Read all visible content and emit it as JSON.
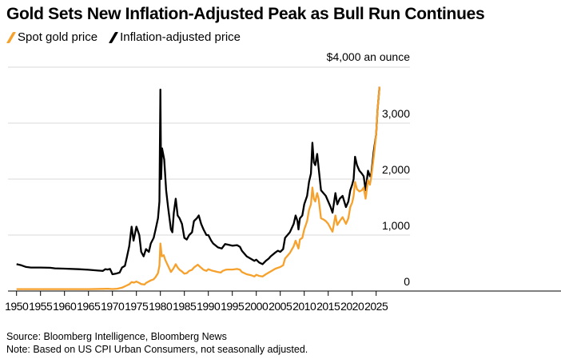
{
  "chart_data": {
    "type": "line",
    "title": "Gold Sets New Inflation-Adjusted Peak as Bull Run Continues",
    "unit_label": "$4,000 an ounce",
    "xlabel": "",
    "ylabel": "",
    "xlim": [
      1948,
      2035
    ],
    "ylim": [
      0,
      4000
    ],
    "grid": true,
    "legend_position": "top-left",
    "x_ticks": [
      1950,
      1955,
      1960,
      1965,
      1970,
      1975,
      1980,
      1985,
      1990,
      1995,
      2000,
      2005,
      2010,
      2015,
      2020,
      2025
    ],
    "y_ticks": [
      {
        "value": 0,
        "label": "0"
      },
      {
        "value": 1000,
        "label": "1,000"
      },
      {
        "value": 2000,
        "label": "2,000"
      },
      {
        "value": 3000,
        "label": "3,000"
      },
      {
        "value": 4000,
        "label": "$4,000 an ounce"
      }
    ],
    "series": [
      {
        "name": "Inflation-adjusted price",
        "color": "#000000",
        "points": [
          [
            1950,
            480
          ],
          [
            1951,
            460
          ],
          [
            1952,
            430
          ],
          [
            1953,
            420
          ],
          [
            1955,
            420
          ],
          [
            1957,
            415
          ],
          [
            1958,
            405
          ],
          [
            1960,
            400
          ],
          [
            1963,
            390
          ],
          [
            1965,
            380
          ],
          [
            1967,
            365
          ],
          [
            1968,
            360
          ],
          [
            1968.5,
            390
          ],
          [
            1969,
            385
          ],
          [
            1969.5,
            395
          ],
          [
            1970,
            300
          ],
          [
            1970.7,
            310
          ],
          [
            1971.5,
            330
          ],
          [
            1972,
            420
          ],
          [
            1972.6,
            450
          ],
          [
            1973,
            600
          ],
          [
            1973.5,
            800
          ],
          [
            1974,
            1150
          ],
          [
            1974.4,
            900
          ],
          [
            1975,
            1150
          ],
          [
            1975.6,
            1000
          ],
          [
            1976,
            700
          ],
          [
            1976.5,
            620
          ],
          [
            1977,
            750
          ],
          [
            1977.6,
            700
          ],
          [
            1978,
            850
          ],
          [
            1978.6,
            950
          ],
          [
            1979,
            1100
          ],
          [
            1979.5,
            1300
          ],
          [
            1979.8,
            1600
          ],
          [
            1980.0,
            3600
          ],
          [
            1980.15,
            2000
          ],
          [
            1980.35,
            2550
          ],
          [
            1980.8,
            2350
          ],
          [
            1981.2,
            1800
          ],
          [
            1981.6,
            1500
          ],
          [
            1982.2,
            1100
          ],
          [
            1982.5,
            1050
          ],
          [
            1982.8,
            1400
          ],
          [
            1983.2,
            1650
          ],
          [
            1983.6,
            1350
          ],
          [
            1984,
            1300
          ],
          [
            1984.5,
            1200
          ],
          [
            1985,
            950
          ],
          [
            1985.5,
            920
          ],
          [
            1986,
            1000
          ],
          [
            1986.6,
            1050
          ],
          [
            1987,
            1250
          ],
          [
            1987.6,
            1300
          ],
          [
            1988,
            1350
          ],
          [
            1988.5,
            1200
          ],
          [
            1989,
            1100
          ],
          [
            1989.6,
            1000
          ],
          [
            1990,
            1000
          ],
          [
            1990.6,
            900
          ],
          [
            1991,
            850
          ],
          [
            1992,
            780
          ],
          [
            1992.8,
            760
          ],
          [
            1993.5,
            840
          ],
          [
            1994,
            830
          ],
          [
            1995,
            810
          ],
          [
            1996,
            820
          ],
          [
            1996.6,
            790
          ],
          [
            1997,
            720
          ],
          [
            1998,
            620
          ],
          [
            1999,
            570
          ],
          [
            1999.6,
            540
          ],
          [
            2000,
            560
          ],
          [
            2000.6,
            510
          ],
          [
            2001.3,
            480
          ],
          [
            2002,
            540
          ],
          [
            2002.6,
            580
          ],
          [
            2003,
            620
          ],
          [
            2004,
            690
          ],
          [
            2004.5,
            720
          ],
          [
            2005,
            700
          ],
          [
            2005.6,
            750
          ],
          [
            2006,
            950
          ],
          [
            2006.5,
            1000
          ],
          [
            2007,
            1050
          ],
          [
            2007.8,
            1200
          ],
          [
            2008.2,
            1350
          ],
          [
            2008.6,
            1250
          ],
          [
            2008.8,
            1100
          ],
          [
            2009.1,
            1300
          ],
          [
            2009.6,
            1350
          ],
          [
            2010,
            1550
          ],
          [
            2010.6,
            1700
          ],
          [
            2011,
            1950
          ],
          [
            2011.4,
            2100
          ],
          [
            2011.7,
            2650
          ],
          [
            2012,
            2300
          ],
          [
            2012.3,
            2250
          ],
          [
            2012.7,
            2450
          ],
          [
            2013,
            2200
          ],
          [
            2013.5,
            1800
          ],
          [
            2014,
            1750
          ],
          [
            2014.5,
            1700
          ],
          [
            2015,
            1600
          ],
          [
            2015.5,
            1500
          ],
          [
            2015.9,
            1400
          ],
          [
            2016.5,
            1750
          ],
          [
            2016.9,
            1550
          ],
          [
            2017.4,
            1650
          ],
          [
            2018,
            1700
          ],
          [
            2018.7,
            1500
          ],
          [
            2019.2,
            1600
          ],
          [
            2019.6,
            1800
          ],
          [
            2020,
            1900
          ],
          [
            2020.3,
            2000
          ],
          [
            2020.6,
            2400
          ],
          [
            2021,
            2250
          ],
          [
            2021.5,
            2150
          ],
          [
            2022,
            2100
          ],
          [
            2022.4,
            2050
          ],
          [
            2022.8,
            1800
          ],
          [
            2023.3,
            2150
          ],
          [
            2023.7,
            2050
          ],
          [
            2024,
            2100
          ],
          [
            2024.5,
            2500
          ],
          [
            2025,
            2800
          ],
          [
            2025.3,
            3250
          ],
          [
            2025.7,
            3650
          ]
        ]
      },
      {
        "name": "Spot gold price",
        "color": "#f7a12d",
        "points": [
          [
            1950,
            35
          ],
          [
            1955,
            35
          ],
          [
            1960,
            35
          ],
          [
            1965,
            35
          ],
          [
            1968,
            38
          ],
          [
            1969,
            42
          ],
          [
            1970,
            36
          ],
          [
            1971,
            41
          ],
          [
            1972,
            60
          ],
          [
            1973,
            100
          ],
          [
            1973.5,
            120
          ],
          [
            1974,
            160
          ],
          [
            1974.5,
            150
          ],
          [
            1975,
            170
          ],
          [
            1975.6,
            145
          ],
          [
            1976,
            125
          ],
          [
            1976.7,
            115
          ],
          [
            1977,
            145
          ],
          [
            1978,
            190
          ],
          [
            1978.6,
            210
          ],
          [
            1979,
            250
          ],
          [
            1979.5,
            320
          ],
          [
            1979.8,
            450
          ],
          [
            1980.0,
            850
          ],
          [
            1980.3,
            620
          ],
          [
            1980.7,
            640
          ],
          [
            1981,
            560
          ],
          [
            1981.6,
            450
          ],
          [
            1982.2,
            340
          ],
          [
            1982.7,
            400
          ],
          [
            1983.2,
            480
          ],
          [
            1983.6,
            420
          ],
          [
            1984,
            380
          ],
          [
            1984.5,
            350
          ],
          [
            1985,
            310
          ],
          [
            1985.5,
            320
          ],
          [
            1986,
            360
          ],
          [
            1986.6,
            380
          ],
          [
            1987,
            420
          ],
          [
            1987.8,
            470
          ],
          [
            1988.3,
            430
          ],
          [
            1989,
            380
          ],
          [
            1989.6,
            360
          ],
          [
            1990,
            390
          ],
          [
            1990.6,
            370
          ],
          [
            1991,
            360
          ],
          [
            1992,
            340
          ],
          [
            1992.6,
            330
          ],
          [
            1993,
            360
          ],
          [
            1993.6,
            380
          ],
          [
            1994,
            385
          ],
          [
            1995,
            385
          ],
          [
            1996,
            395
          ],
          [
            1996.6,
            380
          ],
          [
            1997,
            340
          ],
          [
            1998,
            300
          ],
          [
            1999,
            280
          ],
          [
            1999.6,
            260
          ],
          [
            2000,
            290
          ],
          [
            2000.6,
            270
          ],
          [
            2001.3,
            260
          ],
          [
            2002,
            300
          ],
          [
            2003,
            350
          ],
          [
            2004,
            400
          ],
          [
            2005,
            430
          ],
          [
            2005.6,
            460
          ],
          [
            2006,
            580
          ],
          [
            2006.5,
            630
          ],
          [
            2007,
            680
          ],
          [
            2007.8,
            800
          ],
          [
            2008.2,
            900
          ],
          [
            2008.8,
            760
          ],
          [
            2009.1,
            920
          ],
          [
            2009.6,
            950
          ],
          [
            2010,
            1100
          ],
          [
            2010.6,
            1250
          ],
          [
            2011,
            1450
          ],
          [
            2011.4,
            1550
          ],
          [
            2011.7,
            1850
          ],
          [
            2012,
            1650
          ],
          [
            2012.3,
            1600
          ],
          [
            2012.7,
            1750
          ],
          [
            2013,
            1650
          ],
          [
            2013.5,
            1300
          ],
          [
            2014,
            1280
          ],
          [
            2014.5,
            1250
          ],
          [
            2015,
            1200
          ],
          [
            2015.5,
            1120
          ],
          [
            2015.9,
            1060
          ],
          [
            2016.5,
            1350
          ],
          [
            2016.9,
            1180
          ],
          [
            2017.4,
            1250
          ],
          [
            2018,
            1320
          ],
          [
            2018.7,
            1200
          ],
          [
            2019.2,
            1300
          ],
          [
            2019.6,
            1500
          ],
          [
            2020,
            1580
          ],
          [
            2020.3,
            1700
          ],
          [
            2020.6,
            1950
          ],
          [
            2021,
            1820
          ],
          [
            2021.5,
            1780
          ],
          [
            2022,
            1800
          ],
          [
            2022.4,
            1850
          ],
          [
            2022.8,
            1650
          ],
          [
            2023.3,
            1980
          ],
          [
            2023.7,
            1900
          ],
          [
            2024,
            2050
          ],
          [
            2024.5,
            2400
          ],
          [
            2025,
            2800
          ],
          [
            2025.3,
            3250
          ],
          [
            2025.7,
            3650
          ]
        ]
      }
    ]
  },
  "legend": {
    "spot": "Spot gold price",
    "adjusted": "Inflation-adjusted price"
  },
  "footer": {
    "source": "Source: Bloomberg Intelligence, Bloomberg News",
    "note": "Note: Based on US CPI Urban Consumers, not seasonally adjusted."
  }
}
